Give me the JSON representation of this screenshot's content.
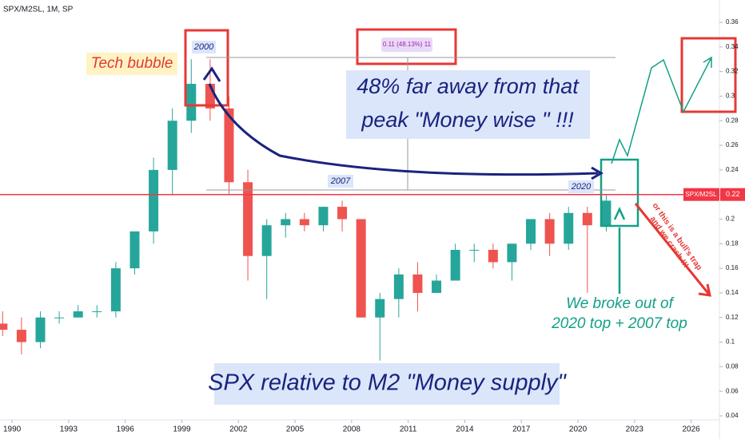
{
  "chart_data": {
    "type": "candlestick",
    "title": "SPX/M2SL, 1M, SP",
    "x": [
      1989,
      1990,
      1991,
      1992,
      1993,
      1994,
      1995,
      1996,
      1997,
      1998,
      1999,
      2000,
      2001,
      2002,
      2003,
      2004,
      2005,
      2006,
      2007,
      2008,
      2009,
      2010,
      2011,
      2012,
      2013,
      2014,
      2015,
      2016,
      2017,
      2018,
      2019,
      2020,
      2021
    ],
    "open": [
      0.115,
      0.11,
      0.1,
      0.12,
      0.12,
      0.125,
      0.125,
      0.16,
      0.19,
      0.24,
      0.28,
      0.31,
      0.29,
      0.23,
      0.17,
      0.195,
      0.2,
      0.195,
      0.21,
      0.2,
      0.12,
      0.135,
      0.155,
      0.14,
      0.15,
      0.175,
      0.175,
      0.165,
      0.18,
      0.2,
      0.18,
      0.205,
      0.195
    ],
    "high": [
      0.125,
      0.12,
      0.125,
      0.125,
      0.13,
      0.13,
      0.165,
      0.19,
      0.25,
      0.29,
      0.33,
      0.33,
      0.3,
      0.24,
      0.2,
      0.205,
      0.205,
      0.21,
      0.215,
      0.2,
      0.14,
      0.16,
      0.165,
      0.155,
      0.18,
      0.18,
      0.18,
      0.18,
      0.2,
      0.205,
      0.21,
      0.21,
      0.22
    ],
    "low": [
      0.105,
      0.09,
      0.095,
      0.115,
      0.12,
      0.12,
      0.12,
      0.155,
      0.18,
      0.22,
      0.27,
      0.28,
      0.22,
      0.15,
      0.135,
      0.185,
      0.19,
      0.19,
      0.19,
      0.12,
      0.085,
      0.12,
      0.125,
      0.14,
      0.15,
      0.165,
      0.16,
      0.15,
      0.175,
      0.17,
      0.175,
      0.14,
      0.19
    ],
    "close": [
      0.11,
      0.1,
      0.12,
      0.12,
      0.125,
      0.125,
      0.16,
      0.19,
      0.24,
      0.28,
      0.31,
      0.29,
      0.23,
      0.17,
      0.195,
      0.2,
      0.195,
      0.21,
      0.2,
      0.12,
      0.135,
      0.155,
      0.14,
      0.15,
      0.175,
      0.175,
      0.165,
      0.18,
      0.2,
      0.18,
      0.205,
      0.195,
      0.215
    ],
    "up_color": "#26a69a",
    "down_color": "#ef5350",
    "xlim": [
      1989.36,
      2027.5
    ],
    "xticks": [
      1990,
      1993,
      1996,
      1999,
      2002,
      2005,
      2008,
      2011,
      2014,
      2017,
      2020,
      2023,
      2026
    ],
    "ylim": [
      0.04,
      0.36
    ],
    "yticks": [
      0.04,
      0.06,
      0.08,
      0.1,
      0.12,
      0.14,
      0.16,
      0.18,
      0.2,
      0.22,
      0.24,
      0.26,
      0.28,
      0.3,
      0.32,
      0.34,
      0.36
    ],
    "price_line": {
      "name": "SPX/M2SL",
      "value": 0.22,
      "color": "#f23645"
    },
    "annotations": {
      "tech_bubble": "Tech bubble",
      "label_2000": "2000",
      "label_2007": "2007",
      "label_2020": "2020",
      "measure": "0.11 (48.13%) 11",
      "far_away": [
        "48% far away from that",
        "peak \"Money wise \" !!!"
      ],
      "broke_out": [
        "We broke out of",
        "2020 top + 2007 top"
      ],
      "subtitle": "SPX relative to M2 \"Money supply\"",
      "bull_trap": [
        "or this is a bull's trap",
        "and we crash !!!"
      ]
    }
  }
}
